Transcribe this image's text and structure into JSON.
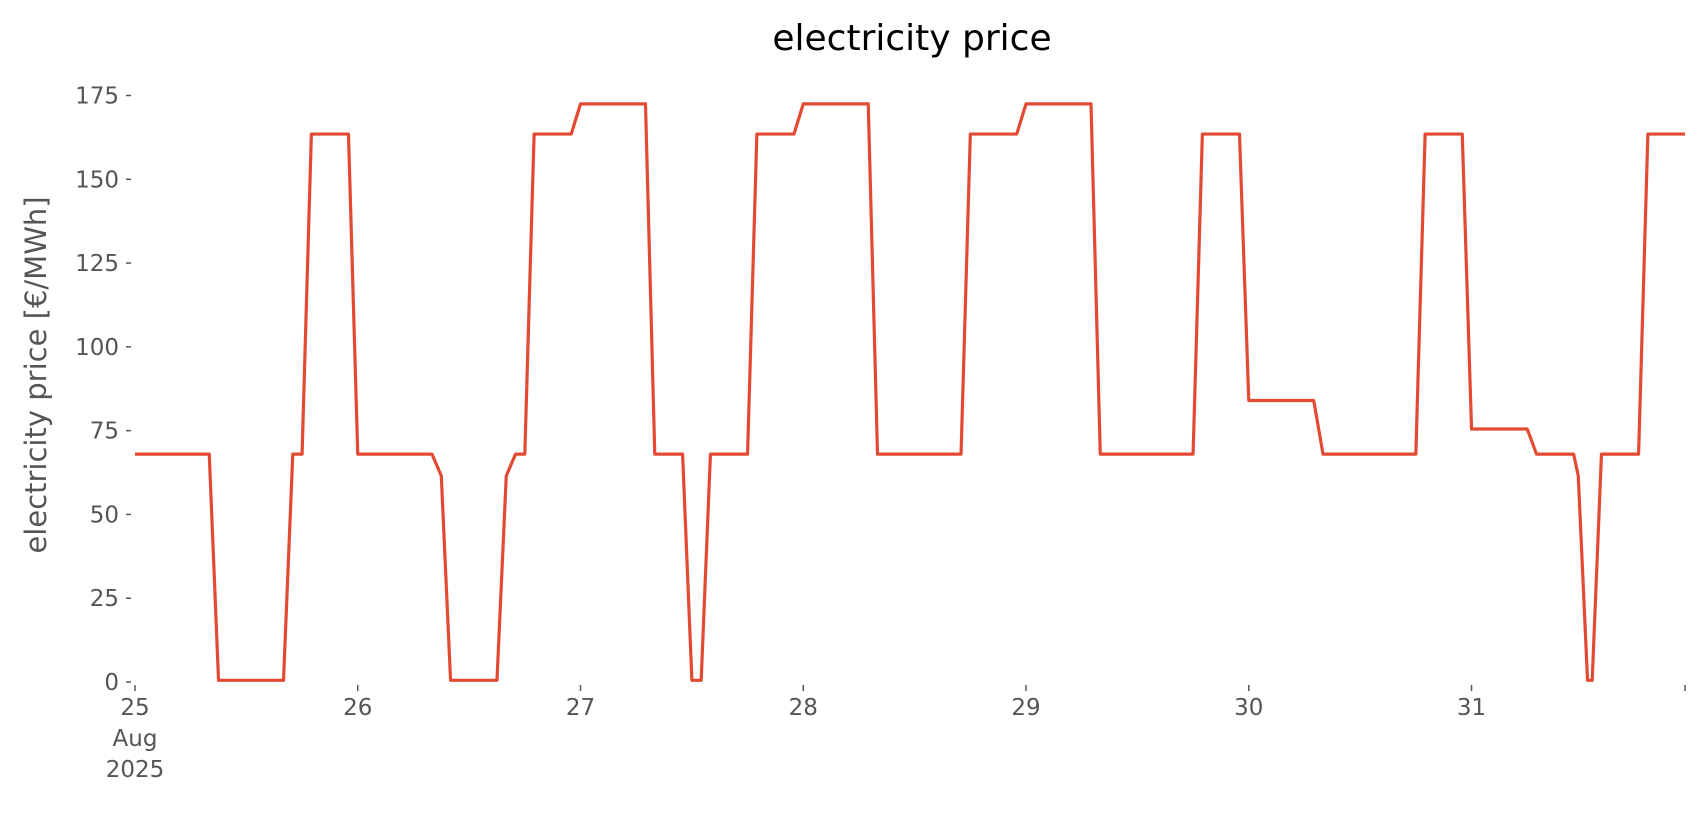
{
  "chart_data": {
    "type": "line",
    "title": "electricity price",
    "xlabel": "",
    "ylabel": "electricity price [€/MWh]",
    "grid": false,
    "legend": "none",
    "xlim": [
      "2025-08-25T00:00",
      "2025-08-31T23:00"
    ],
    "ylim": [
      0,
      175
    ],
    "yticks": [
      0,
      25,
      50,
      75,
      100,
      125,
      150,
      175
    ],
    "xticks": [
      {
        "at": "2025-08-25T00:00",
        "lines": [
          "25",
          "Aug",
          "2025"
        ]
      },
      {
        "at": "2025-08-26T00:00",
        "lines": [
          "26"
        ]
      },
      {
        "at": "2025-08-27T00:00",
        "lines": [
          "27"
        ]
      },
      {
        "at": "2025-08-28T00:00",
        "lines": [
          "28"
        ]
      },
      {
        "at": "2025-08-29T00:00",
        "lines": [
          "29"
        ]
      },
      {
        "at": "2025-08-30T00:00",
        "lines": [
          "30"
        ]
      },
      {
        "at": "2025-08-31T00:00",
        "lines": [
          "31"
        ]
      },
      {
        "at": "2025-08-31T23:00",
        "lines": [
          ""
        ]
      }
    ],
    "series": [
      {
        "color": "#E24A33",
        "points": [
          [
            "2025-08-25T00:00",
            68
          ],
          [
            "2025-08-25T08:00",
            68
          ],
          [
            "2025-08-25T09:00",
            0.5
          ],
          [
            "2025-08-25T16:00",
            0.5
          ],
          [
            "2025-08-25T17:00",
            68
          ],
          [
            "2025-08-25T18:00",
            68
          ],
          [
            "2025-08-25T19:00",
            163.5
          ],
          [
            "2025-08-25T23:00",
            163.5
          ],
          [
            "2025-08-26T00:00",
            68
          ],
          [
            "2025-08-26T08:00",
            68
          ],
          [
            "2025-08-26T09:00",
            61.5
          ],
          [
            "2025-08-26T10:00",
            0.5
          ],
          [
            "2025-08-26T15:00",
            0.5
          ],
          [
            "2025-08-26T16:00",
            61.5
          ],
          [
            "2025-08-26T17:00",
            68
          ],
          [
            "2025-08-26T18:00",
            68
          ],
          [
            "2025-08-26T19:00",
            163.5
          ],
          [
            "2025-08-26T23:00",
            163.5
          ],
          [
            "2025-08-27T00:00",
            172.5
          ],
          [
            "2025-08-27T07:00",
            172.5
          ],
          [
            "2025-08-27T08:00",
            68
          ],
          [
            "2025-08-27T11:00",
            68
          ],
          [
            "2025-08-27T12:00",
            0.5
          ],
          [
            "2025-08-27T13:00",
            0.5
          ],
          [
            "2025-08-27T14:00",
            68
          ],
          [
            "2025-08-27T18:00",
            68
          ],
          [
            "2025-08-27T19:00",
            163.5
          ],
          [
            "2025-08-27T23:00",
            163.5
          ],
          [
            "2025-08-28T00:00",
            172.5
          ],
          [
            "2025-08-28T07:00",
            172.5
          ],
          [
            "2025-08-28T08:00",
            68
          ],
          [
            "2025-08-28T17:00",
            68
          ],
          [
            "2025-08-28T18:00",
            163.5
          ],
          [
            "2025-08-28T23:00",
            163.5
          ],
          [
            "2025-08-29T00:00",
            172.5
          ],
          [
            "2025-08-29T07:00",
            172.5
          ],
          [
            "2025-08-29T08:00",
            68
          ],
          [
            "2025-08-29T18:00",
            68
          ],
          [
            "2025-08-29T19:00",
            163.5
          ],
          [
            "2025-08-29T23:00",
            163.5
          ],
          [
            "2025-08-30T00:00",
            84
          ],
          [
            "2025-08-30T07:00",
            84
          ],
          [
            "2025-08-30T08:00",
            68
          ],
          [
            "2025-08-30T18:00",
            68
          ],
          [
            "2025-08-30T19:00",
            163.5
          ],
          [
            "2025-08-30T23:00",
            163.5
          ],
          [
            "2025-08-31T00:00",
            75.5
          ],
          [
            "2025-08-31T06:00",
            75.5
          ],
          [
            "2025-08-31T07:00",
            68
          ],
          [
            "2025-08-31T11:00",
            68
          ],
          [
            "2025-08-31T11:30",
            61.5
          ],
          [
            "2025-08-31T12:30",
            0.5
          ],
          [
            "2025-08-31T13:00",
            0.5
          ],
          [
            "2025-08-31T14:00",
            68
          ],
          [
            "2025-08-31T18:00",
            68
          ],
          [
            "2025-08-31T19:00",
            163.5
          ],
          [
            "2025-08-31T23:00",
            163.5
          ]
        ]
      }
    ]
  }
}
